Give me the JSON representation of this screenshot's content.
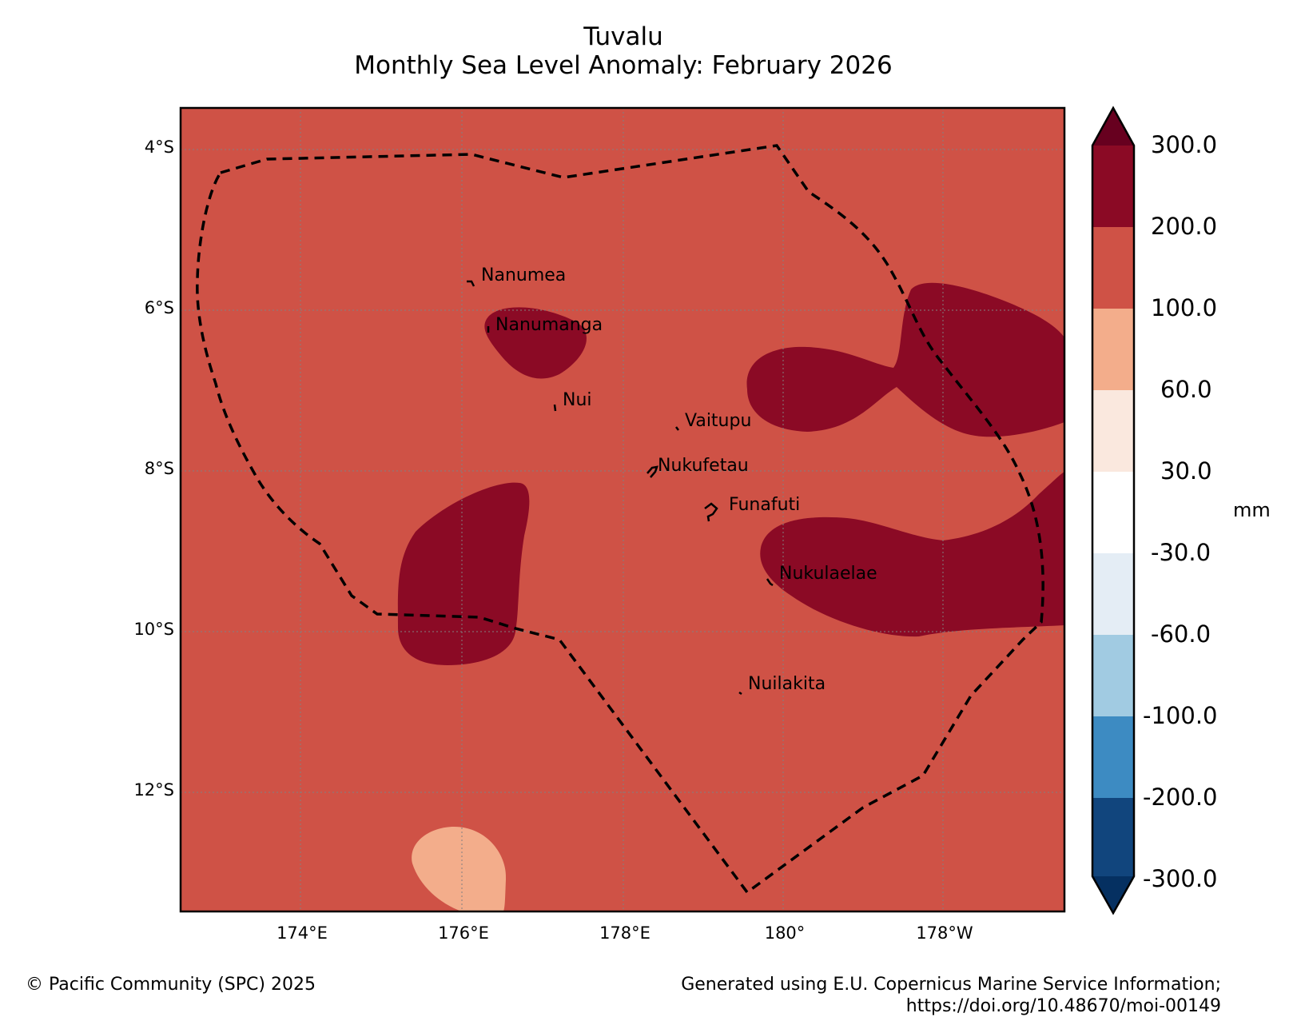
{
  "title": {
    "line1": "Tuvalu",
    "line2": "Monthly Sea Level Anomaly: February 2026"
  },
  "axes": {
    "lat_ticks": [
      "4°S",
      "6°S",
      "8°S",
      "10°S",
      "12°S"
    ],
    "lon_ticks": [
      "174°E",
      "176°E",
      "178°E",
      "180°",
      "178°W"
    ]
  },
  "islands": [
    "Nanumea",
    "Nanumanga",
    "Nui",
    "Vaitupu",
    "Nukufetau",
    "Funafuti",
    "Nukulaelae",
    "Nuilakita"
  ],
  "colorbar": {
    "unit": "mm",
    "labels": [
      "300.0",
      "200.0",
      "100.0",
      "60.0",
      "30.0",
      "-30.0",
      "-60.0",
      "-100.0",
      "-200.0",
      "-300.0"
    ],
    "colors": [
      "#67001f",
      "#8b0a25",
      "#cf5246",
      "#f3ad8b",
      "#fae8de",
      "#ffffff",
      "#e4edf5",
      "#a1cbe2",
      "#3d8bc2",
      "#11457d",
      "#053061"
    ]
  },
  "map_colors": {
    "background": "#cf5246",
    "high": "#8b0a25",
    "moderate": "#f3ad8b"
  },
  "footer": {
    "copyright": "© Pacific Community (SPC) 2025",
    "source_line1": "Generated using E.U. Copernicus Marine Service Information;",
    "source_line2": "https://doi.org/10.48670/moi-00149"
  }
}
